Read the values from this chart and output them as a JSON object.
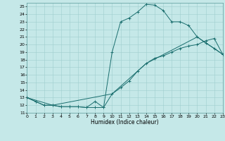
{
  "bg_color": "#c5e8e8",
  "line_color": "#1a6e6e",
  "grid_color": "#9fcece",
  "xlim": [
    0,
    23
  ],
  "ylim": [
    11,
    25.5
  ],
  "xticks": [
    0,
    1,
    2,
    3,
    4,
    5,
    6,
    7,
    8,
    9,
    10,
    11,
    12,
    13,
    14,
    15,
    16,
    17,
    18,
    19,
    20,
    21,
    22,
    23
  ],
  "yticks": [
    11,
    12,
    13,
    14,
    15,
    16,
    17,
    18,
    19,
    20,
    21,
    22,
    23,
    24,
    25
  ],
  "xlabel": "Humidex (Indice chaleur)",
  "line1_x": [
    0,
    1,
    2,
    3,
    4,
    5,
    6,
    7,
    8,
    9,
    10,
    11,
    12,
    13,
    14,
    15,
    16,
    17,
    18,
    19,
    20,
    21,
    22,
    23
  ],
  "line1_y": [
    13.0,
    12.5,
    12.0,
    12.0,
    11.8,
    11.8,
    11.8,
    11.7,
    11.7,
    11.7,
    19.0,
    23.0,
    23.5,
    24.3,
    25.3,
    25.2,
    24.5,
    23.0,
    23.0,
    22.5,
    21.0,
    20.2,
    19.5,
    18.7
  ],
  "line2_x": [
    0,
    1,
    2,
    3,
    4,
    5,
    6,
    7,
    8,
    9,
    10,
    11,
    12,
    13,
    14,
    15,
    16,
    17,
    18,
    19,
    20,
    21,
    22,
    23
  ],
  "line2_y": [
    13.0,
    12.5,
    12.0,
    12.0,
    11.8,
    11.8,
    11.8,
    11.7,
    12.5,
    11.7,
    13.5,
    14.3,
    15.2,
    16.5,
    17.5,
    18.2,
    18.5,
    19.0,
    19.5,
    19.8,
    20.0,
    20.5,
    20.8,
    18.7
  ],
  "line3_x": [
    0,
    3,
    10,
    14,
    20,
    23
  ],
  "line3_y": [
    13.0,
    12.0,
    13.5,
    17.5,
    21.0,
    18.7
  ],
  "xlabel_fontsize": 5.5,
  "tick_fontsize": 4.5,
  "linewidth": 0.7,
  "markersize": 2.5,
  "markeredgewidth": 0.7
}
